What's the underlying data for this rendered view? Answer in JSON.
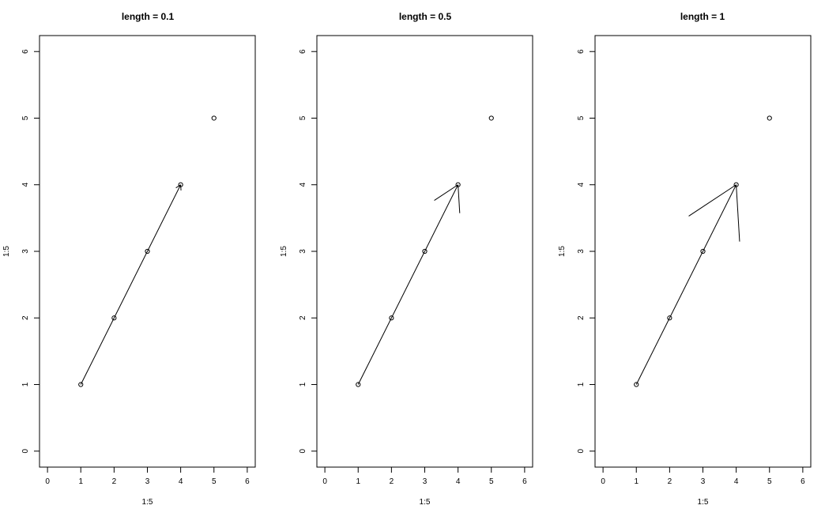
{
  "chart_data": [
    {
      "type": "scatter",
      "title": "length = 0.1",
      "xlabel": "1:5",
      "ylabel": "1:5",
      "xlim": [
        0,
        6
      ],
      "ylim": [
        0,
        6
      ],
      "x_ticks": [
        "0",
        "1",
        "2",
        "3",
        "4",
        "5",
        "6"
      ],
      "y_ticks": [
        "0",
        "1",
        "2",
        "3",
        "4",
        "5",
        "6"
      ],
      "points": {
        "x": [
          1,
          2,
          3,
          4,
          5
        ],
        "y": [
          1,
          2,
          3,
          4,
          5
        ]
      },
      "arrow": {
        "from": [
          1,
          1
        ],
        "to": [
          4,
          4
        ],
        "head_length": 0.1
      }
    },
    {
      "type": "scatter",
      "title": "length = 0.5",
      "xlabel": "1:5",
      "ylabel": "1:5",
      "xlim": [
        0,
        6
      ],
      "ylim": [
        0,
        6
      ],
      "x_ticks": [
        "0",
        "1",
        "2",
        "3",
        "4",
        "5",
        "6"
      ],
      "y_ticks": [
        "0",
        "1",
        "2",
        "3",
        "4",
        "5",
        "6"
      ],
      "points": {
        "x": [
          1,
          2,
          3,
          4,
          5
        ],
        "y": [
          1,
          2,
          3,
          4,
          5
        ]
      },
      "arrow": {
        "from": [
          1,
          1
        ],
        "to": [
          4,
          4
        ],
        "head_length": 0.5
      }
    },
    {
      "type": "scatter",
      "title": "length = 1",
      "xlabel": "1:5",
      "ylabel": "1:5",
      "xlim": [
        0,
        6
      ],
      "ylim": [
        0,
        6
      ],
      "x_ticks": [
        "0",
        "1",
        "2",
        "3",
        "4",
        "5",
        "6"
      ],
      "y_ticks": [
        "0",
        "1",
        "2",
        "3",
        "4",
        "5",
        "6"
      ],
      "points": {
        "x": [
          1,
          2,
          3,
          4,
          5
        ],
        "y": [
          1,
          2,
          3,
          4,
          5
        ]
      },
      "arrow": {
        "from": [
          1,
          1
        ],
        "to": [
          4,
          4
        ],
        "head_length": 1
      }
    }
  ]
}
